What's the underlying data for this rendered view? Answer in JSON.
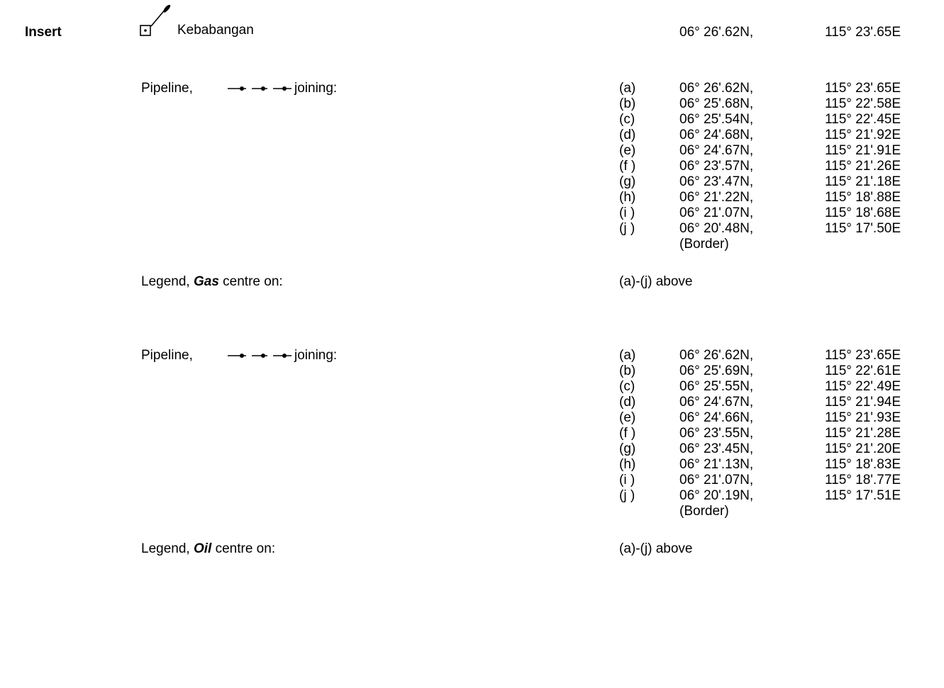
{
  "insert_label": "Insert",
  "platform": {
    "icon": "platform-with-flare-icon",
    "name": "Kebabangan",
    "lat": "06° 26'.62N,",
    "lon": "115° 23'.65E"
  },
  "sections": [
    {
      "pipeline_label": "Pipeline,",
      "pipeline_icon": "pipeline-symbol-icon",
      "joining": "joining:",
      "points": [
        {
          "label": "(a)",
          "lat": "06° 26'.62N,",
          "lon": "115° 23'.65E"
        },
        {
          "label": "(b)",
          "lat": "06° 25'.68N,",
          "lon": "115° 22'.58E"
        },
        {
          "label": "(c)",
          "lat": "06° 25'.54N,",
          "lon": "115° 22'.45E"
        },
        {
          "label": "(d)",
          "lat": "06° 24'.68N,",
          "lon": "115° 21'.92E"
        },
        {
          "label": "(e)",
          "lat": "06° 24'.67N,",
          "lon": "115° 21'.91E"
        },
        {
          "label": "(f )",
          "lat": "06° 23'.57N,",
          "lon": "115° 21'.26E"
        },
        {
          "label": "(g)",
          "lat": "06° 23'.47N,",
          "lon": "115° 21'.18E"
        },
        {
          "label": "(h)",
          "lat": "06° 21'.22N,",
          "lon": "115° 18'.88E"
        },
        {
          "label": "(i )",
          "lat": "06° 21'.07N,",
          "lon": "115° 18'.68E"
        },
        {
          "label": "(j )",
          "lat": "06° 20'.48N,",
          "lon": "115° 17'.50E"
        }
      ],
      "border_note": "(Border)",
      "legend_prefix": "Legend,",
      "legend_word": "Gas",
      "legend_suffix": "centre on:",
      "legend_ref": "(a)-(j) above"
    },
    {
      "pipeline_label": "Pipeline,",
      "pipeline_icon": "pipeline-symbol-icon",
      "joining": "joining:",
      "points": [
        {
          "label": "(a)",
          "lat": "06° 26'.62N,",
          "lon": "115° 23'.65E"
        },
        {
          "label": "(b)",
          "lat": "06° 25'.69N,",
          "lon": "115° 22'.61E"
        },
        {
          "label": "(c)",
          "lat": "06° 25'.55N,",
          "lon": "115° 22'.49E"
        },
        {
          "label": "(d)",
          "lat": "06° 24'.67N,",
          "lon": "115° 21'.94E"
        },
        {
          "label": "(e)",
          "lat": "06° 24'.66N,",
          "lon": "115° 21'.93E"
        },
        {
          "label": "(f )",
          "lat": "06° 23'.55N,",
          "lon": "115° 21'.28E"
        },
        {
          "label": "(g)",
          "lat": "06° 23'.45N,",
          "lon": "115° 21'.20E"
        },
        {
          "label": "(h)",
          "lat": "06° 21'.13N,",
          "lon": "115° 18'.83E"
        },
        {
          "label": "(i )",
          "lat": "06° 21'.07N,",
          "lon": "115° 18'.77E"
        },
        {
          "label": "(j )",
          "lat": "06° 20'.19N,",
          "lon": "115° 17'.51E"
        }
      ],
      "border_note": "(Border)",
      "legend_prefix": "Legend,",
      "legend_word": "Oil",
      "legend_suffix": "centre on:",
      "legend_ref": "(a)-(j) above"
    }
  ]
}
